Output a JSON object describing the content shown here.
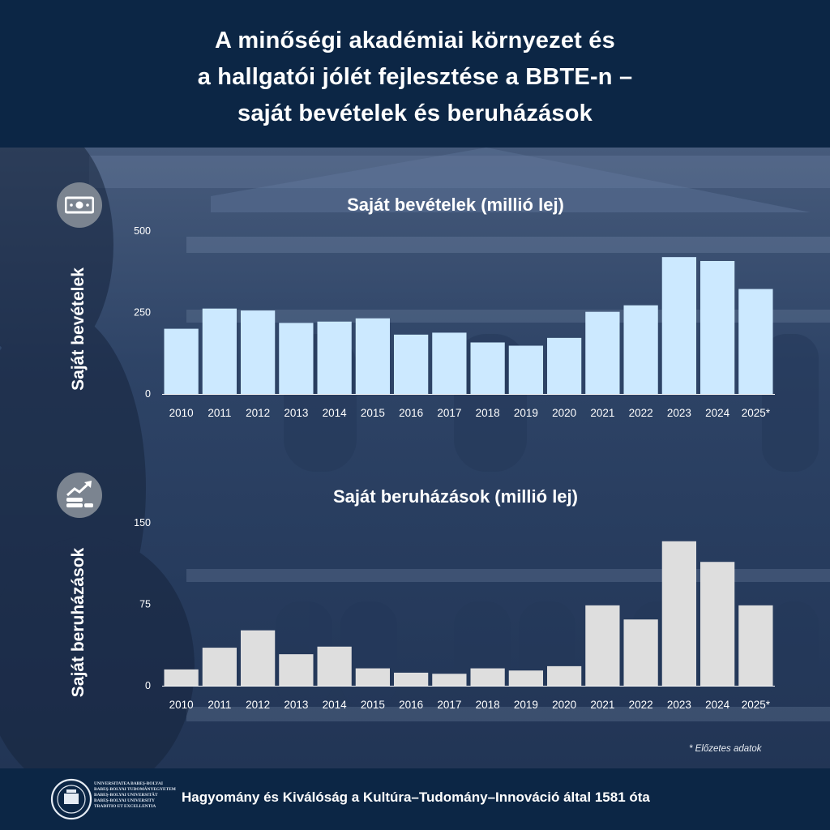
{
  "header": {
    "title": "A minőségi akadémiai környezet és\na hallgatói jólét fejlesztése a BBTE-n –\nsaját bevételek és beruházások"
  },
  "icons": {
    "revenue": "banknote-icon",
    "investment": "coins-growth-icon"
  },
  "colors": {
    "header_bg": "#0c2645",
    "revenue_bar": "#cce9ff",
    "investment_bar": "#dedede"
  },
  "chart_data": [
    {
      "type": "bar",
      "title": "Saját bevételek (millió lej)",
      "ylabel": "Saját bevételek",
      "categories": [
        "2010",
        "2011",
        "2012",
        "2013",
        "2014",
        "2015",
        "2016",
        "2017",
        "2018",
        "2019",
        "2020",
        "2021",
        "2022",
        "2023",
        "2024",
        "2025*"
      ],
      "values": [
        200,
        262,
        256,
        218,
        222,
        232,
        182,
        188,
        158,
        148,
        172,
        252,
        272,
        420,
        408,
        322
      ],
      "ylim": [
        0,
        500
      ],
      "yticks": [
        "0",
        "250",
        "500"
      ],
      "grid": false
    },
    {
      "type": "bar",
      "title": "Saját beruházások (millió lej)",
      "ylabel": "Saját beruházások",
      "categories": [
        "2010",
        "2011",
        "2012",
        "2013",
        "2014",
        "2015",
        "2016",
        "2017",
        "2018",
        "2019",
        "2020",
        "2021",
        "2022",
        "2023",
        "2024",
        "2025*"
      ],
      "values": [
        15,
        35,
        51,
        29,
        36,
        16,
        12,
        11,
        16,
        14,
        18,
        74,
        61,
        133,
        114,
        74
      ],
      "ylim": [
        0,
        150
      ],
      "yticks": [
        "0",
        "75",
        "150"
      ],
      "grid": false
    }
  ],
  "footnote": "* Előzetes adatok",
  "footer": {
    "logo_text": "UNIVERSITATEA BABEŞ-BOLYAI\nBABEŞ-BOLYAI TUDOMÁNYEGYETEM\nBABEŞ-BOLYAI UNIVERSITÄT\nBABEŞ-BOLYAI UNIVERSITY\nTRADITIO ET EXCELLENTIA",
    "tagline": "Hagyomány és Kiválóság a Kultúra–Tudomány–Innováció által 1581 óta"
  }
}
